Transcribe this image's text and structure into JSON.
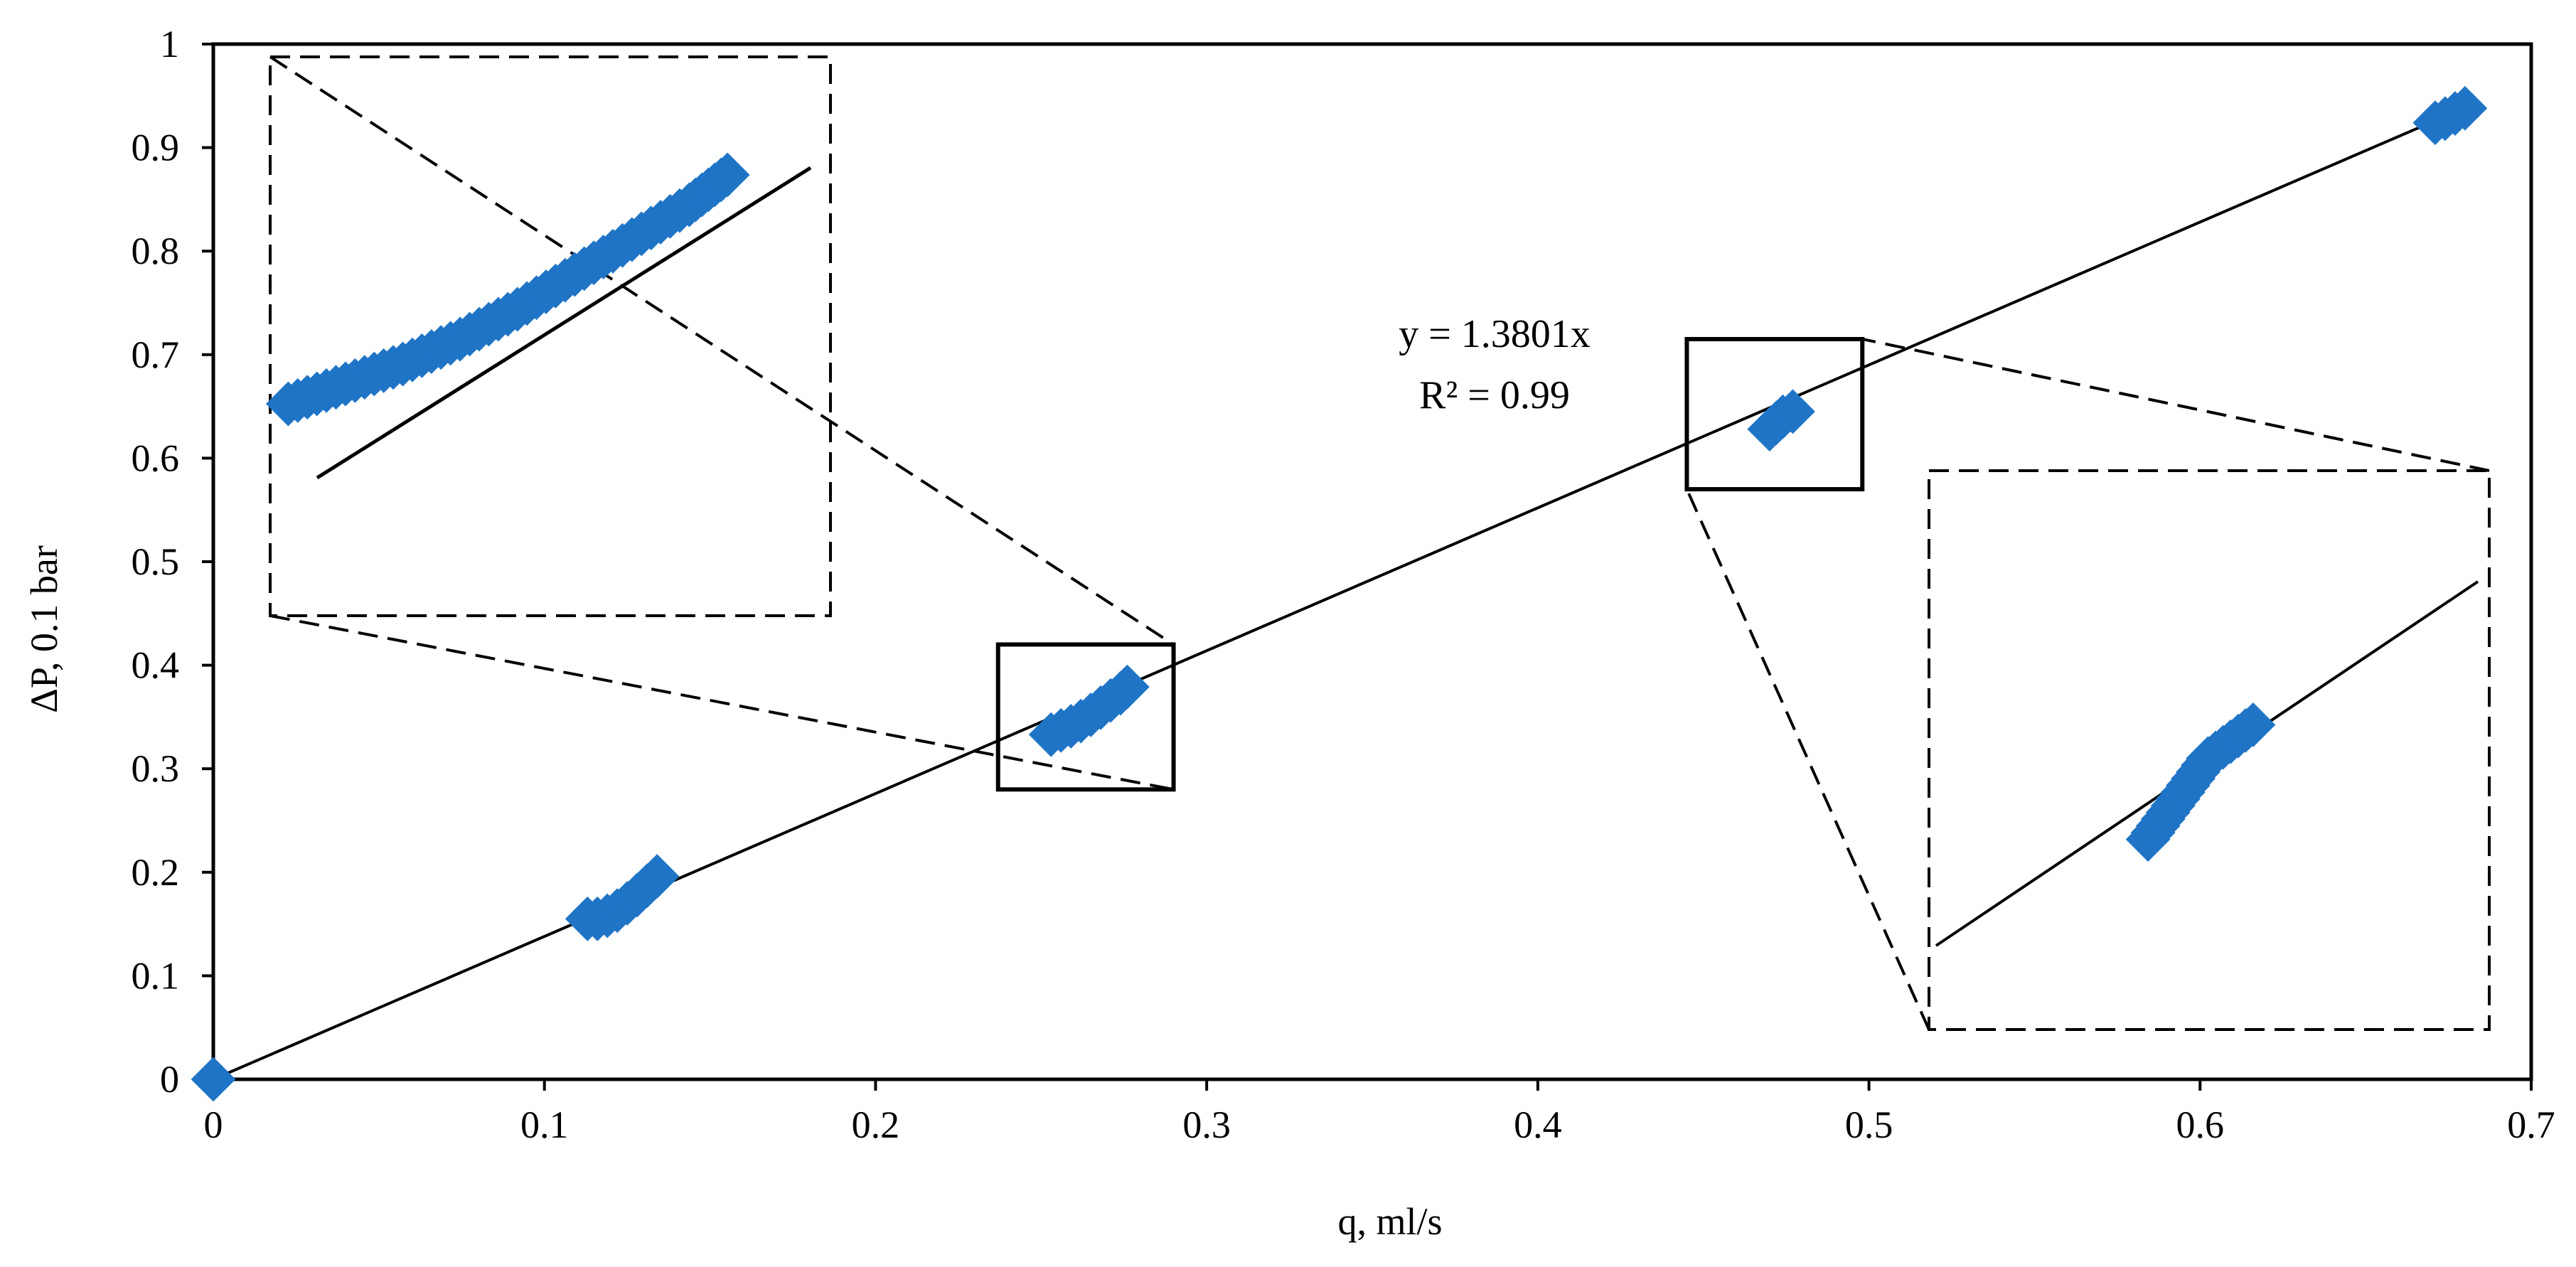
{
  "chart_data": {
    "type": "scatter",
    "title": "",
    "xlabel": "q, ml/s",
    "ylabel": "ΔP, 0.1 bar",
    "xlim": [
      0,
      0.7
    ],
    "ylim": [
      0,
      1
    ],
    "grid": false,
    "legend": "none",
    "x_ticks": [
      "0",
      "0.1",
      "0.2",
      "0.3",
      "0.4",
      "0.5",
      "0.6",
      "0.7"
    ],
    "y_ticks": [
      "0",
      "0.1",
      "0.2",
      "0.3",
      "0.4",
      "0.5",
      "0.6",
      "0.7",
      "0.8",
      "0.9",
      "1"
    ],
    "marker_color": "#1f74c6",
    "series": [
      {
        "values": [
          {
            "x": 0.0,
            "y": 0.0
          },
          {
            "x": 0.113,
            "y": 0.155
          },
          {
            "x": 0.116,
            "y": 0.155
          },
          {
            "x": 0.119,
            "y": 0.158
          },
          {
            "x": 0.122,
            "y": 0.163
          },
          {
            "x": 0.125,
            "y": 0.17
          },
          {
            "x": 0.128,
            "y": 0.178
          },
          {
            "x": 0.131,
            "y": 0.187
          },
          {
            "x": 0.134,
            "y": 0.196
          },
          {
            "x": 0.253,
            "y": 0.333
          },
          {
            "x": 0.256,
            "y": 0.337
          },
          {
            "x": 0.259,
            "y": 0.341
          },
          {
            "x": 0.262,
            "y": 0.346
          },
          {
            "x": 0.265,
            "y": 0.352
          },
          {
            "x": 0.268,
            "y": 0.359
          },
          {
            "x": 0.271,
            "y": 0.366
          },
          {
            "x": 0.274,
            "y": 0.373
          },
          {
            "x": 0.276,
            "y": 0.379
          },
          {
            "x": 0.47,
            "y": 0.628
          },
          {
            "x": 0.472,
            "y": 0.634
          },
          {
            "x": 0.474,
            "y": 0.64
          },
          {
            "x": 0.477,
            "y": 0.645
          },
          {
            "x": 0.671,
            "y": 0.924
          },
          {
            "x": 0.674,
            "y": 0.928
          },
          {
            "x": 0.677,
            "y": 0.933
          },
          {
            "x": 0.68,
            "y": 0.938
          }
        ]
      }
    ],
    "trendline": {
      "slope": 1.3801,
      "x_range": [
        0,
        0.68
      ],
      "equation_label": "y = 1.3801x",
      "r2_label": "R² = 0.99"
    },
    "zoom_boxes": [
      {
        "xrange": [
          0.237,
          0.29
        ],
        "yrange": [
          0.28,
          0.42
        ]
      },
      {
        "xrange": [
          0.445,
          0.498
        ],
        "yrange": [
          0.57,
          0.715
        ]
      }
    ]
  }
}
